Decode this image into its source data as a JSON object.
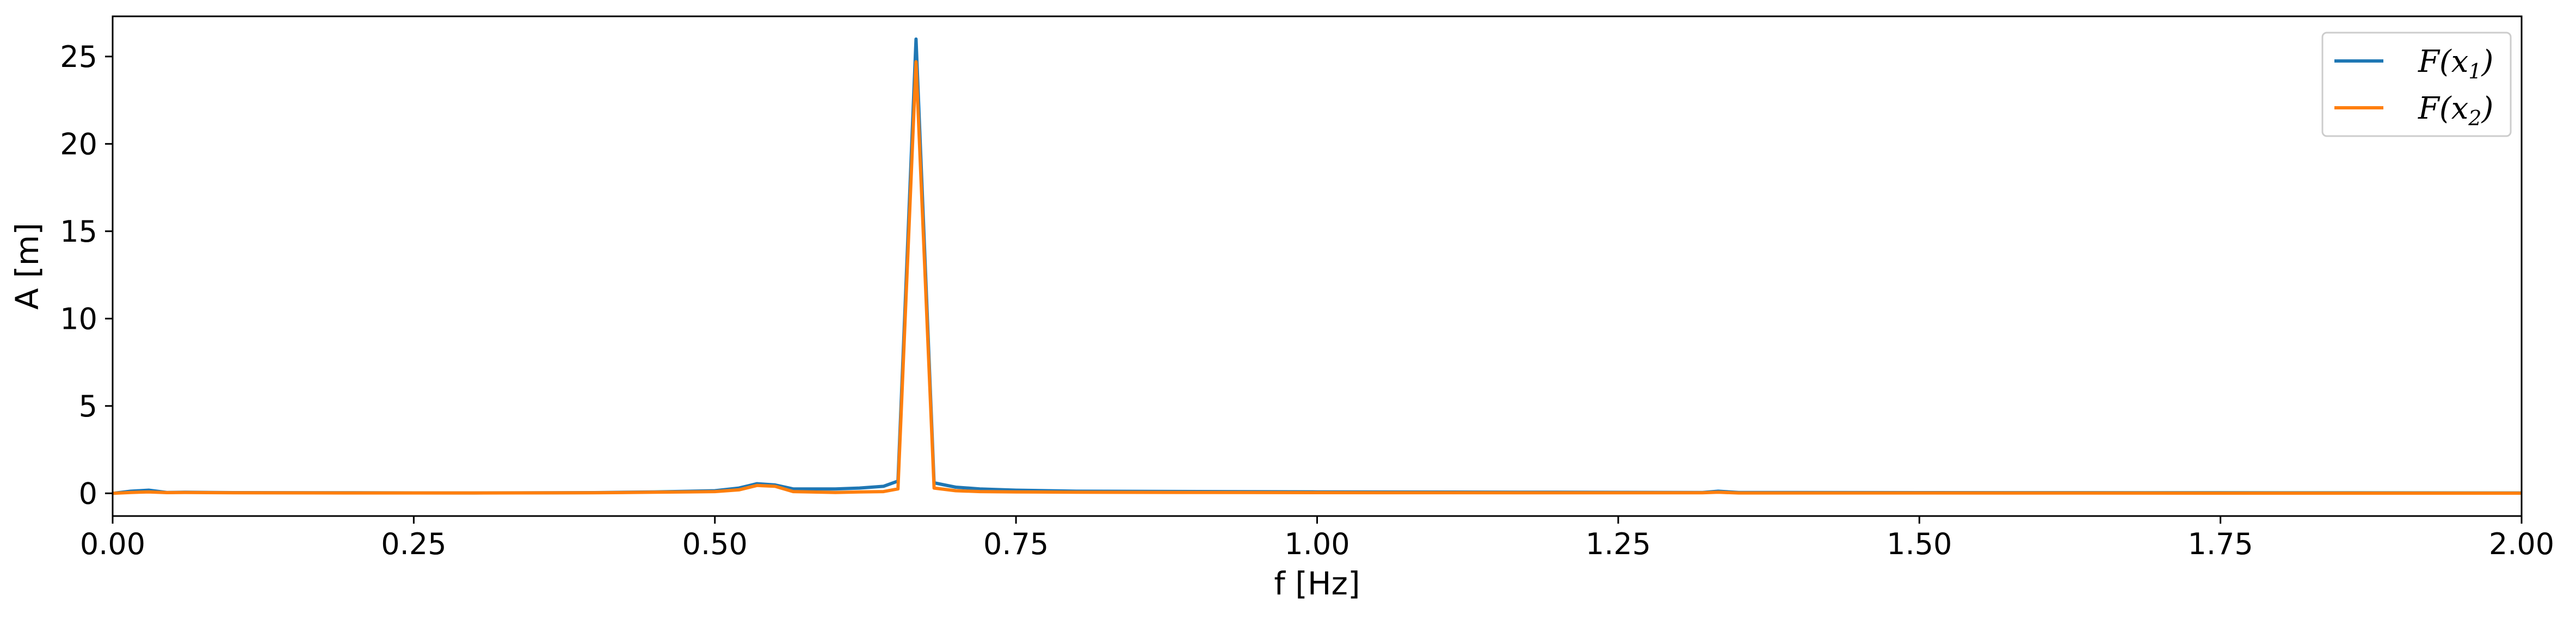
{
  "chart_data": {
    "type": "line",
    "title": "",
    "xlabel": "f [Hz]",
    "ylabel": "A [m]",
    "xlim": [
      0.0,
      2.0
    ],
    "ylim": [
      -1.3,
      27.3
    ],
    "xticks": [
      0.0,
      0.25,
      0.5,
      0.75,
      1.0,
      1.25,
      1.5,
      1.75,
      2.0
    ],
    "xtick_labels": [
      "0.00",
      "0.25",
      "0.50",
      "0.75",
      "1.00",
      "1.25",
      "1.50",
      "1.75",
      "2.00"
    ],
    "yticks": [
      0,
      5,
      10,
      15,
      20,
      25
    ],
    "ytick_labels": [
      "0",
      "5",
      "10",
      "15",
      "20",
      "25"
    ],
    "grid": false,
    "legend_position": "top-right",
    "series": [
      {
        "name": "F(x1)",
        "name_base": "F(x",
        "name_sub": "1",
        "name_end": ")",
        "color": "#1f77b4",
        "x": [
          0.0,
          0.015,
          0.03,
          0.045,
          0.06,
          0.1,
          0.2,
          0.3,
          0.4,
          0.45,
          0.5,
          0.52,
          0.535,
          0.55,
          0.565,
          0.6,
          0.62,
          0.64,
          0.652,
          0.667,
          0.682,
          0.7,
          0.72,
          0.75,
          0.8,
          1.0,
          1.2,
          1.32,
          1.333,
          1.35,
          1.5,
          1.75,
          2.0
        ],
        "y": [
          0.0,
          0.12,
          0.18,
          0.05,
          0.06,
          0.04,
          0.03,
          0.02,
          0.04,
          0.08,
          0.15,
          0.3,
          0.55,
          0.48,
          0.25,
          0.25,
          0.3,
          0.4,
          0.7,
          26.0,
          0.6,
          0.35,
          0.25,
          0.18,
          0.12,
          0.08,
          0.06,
          0.05,
          0.12,
          0.05,
          0.04,
          0.03,
          0.02
        ]
      },
      {
        "name": "F(x2)",
        "name_base": "F(x",
        "name_sub": "2",
        "name_end": ")",
        "color": "#ff7f0e",
        "x": [
          0.0,
          0.015,
          0.03,
          0.045,
          0.06,
          0.1,
          0.2,
          0.3,
          0.4,
          0.45,
          0.5,
          0.52,
          0.535,
          0.55,
          0.565,
          0.6,
          0.62,
          0.64,
          0.652,
          0.667,
          0.682,
          0.7,
          0.72,
          0.75,
          0.8,
          1.0,
          1.2,
          1.32,
          1.333,
          1.35,
          1.5,
          1.75,
          2.0
        ],
        "y": [
          0.0,
          0.05,
          0.08,
          0.04,
          0.05,
          0.03,
          0.02,
          0.02,
          0.03,
          0.06,
          0.1,
          0.2,
          0.45,
          0.4,
          0.1,
          0.05,
          0.08,
          0.1,
          0.25,
          24.7,
          0.3,
          0.15,
          0.1,
          0.08,
          0.06,
          0.04,
          0.03,
          0.03,
          0.06,
          0.02,
          0.02,
          0.01,
          0.01
        ]
      }
    ]
  }
}
